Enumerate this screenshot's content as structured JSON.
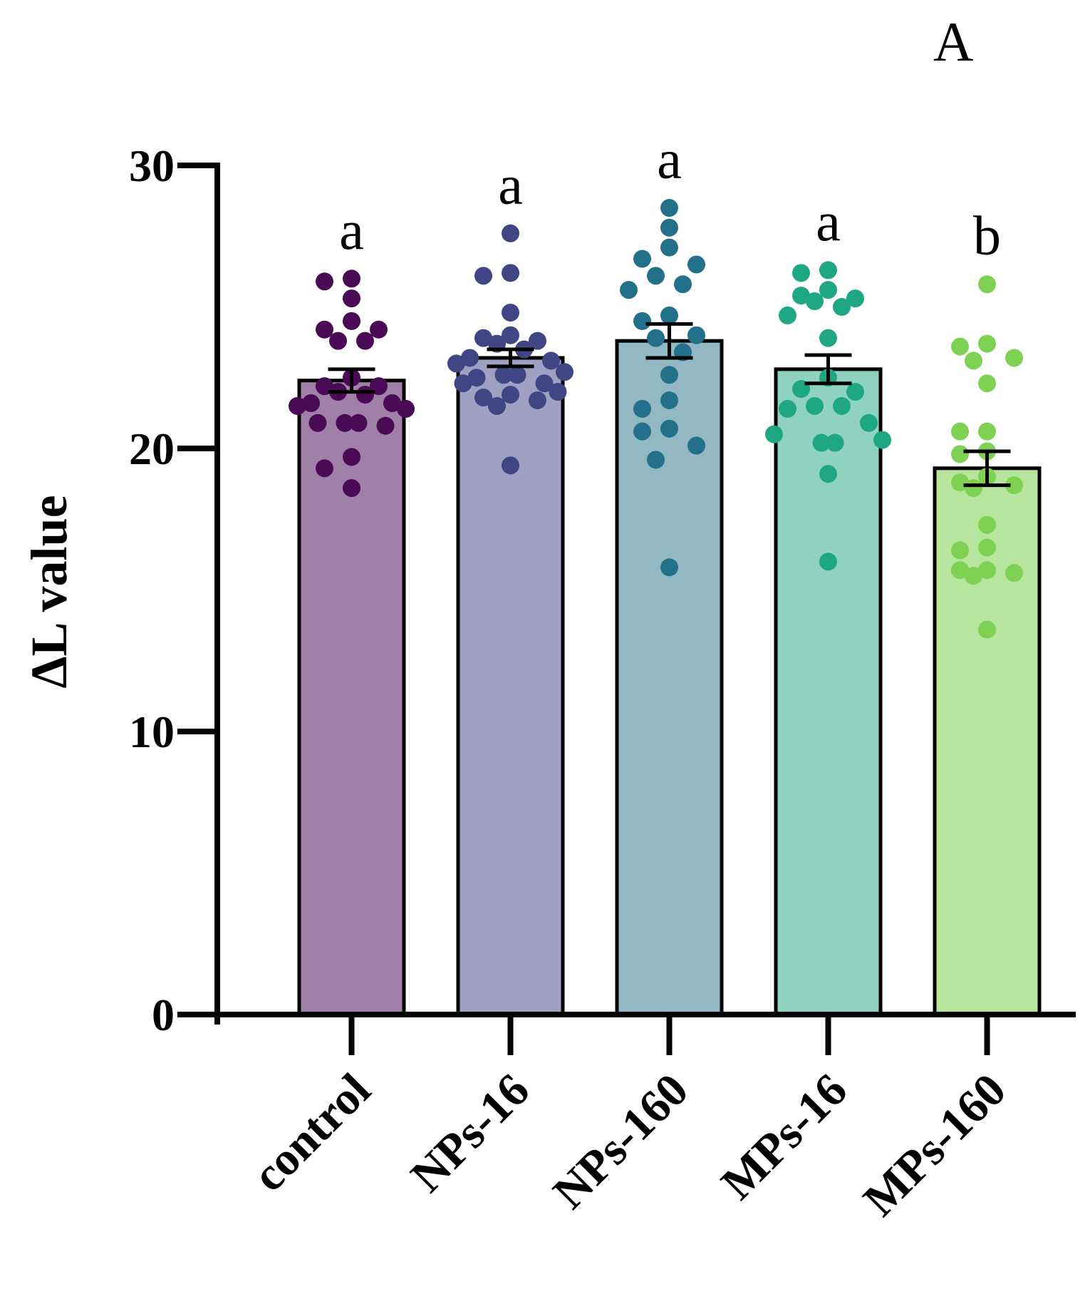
{
  "panel_label": "A",
  "chart_data": {
    "type": "bar",
    "title": "",
    "xlabel": "",
    "ylabel": "ΔL value",
    "ylim": [
      0,
      30
    ],
    "yticks": [
      0,
      10,
      20,
      30
    ],
    "ytick_labels": [
      "0",
      "10",
      "20",
      "30"
    ],
    "categories": [
      "control",
      "NPs-16",
      "NPs-160",
      "MPs-16",
      "MPs-160"
    ],
    "values": [
      22.4,
      23.2,
      23.8,
      22.8,
      19.3
    ],
    "errors": [
      0.4,
      0.3,
      0.6,
      0.5,
      0.6
    ],
    "significance": [
      "a",
      "a",
      "a",
      "a",
      "b"
    ],
    "bar_colors": [
      "#a07fa8",
      "#9fa0c2",
      "#93b8c4",
      "#90d2c0",
      "#b8e59e"
    ],
    "dot_colors": [
      "#4b0a55",
      "#404584",
      "#22708a",
      "#1fa784",
      "#7ed152"
    ],
    "points": [
      [
        26.0,
        25.9,
        25.3,
        24.5,
        24.2,
        23.8,
        24.2,
        23.8,
        22.5,
        22.2,
        22.2,
        22.0,
        21.9,
        21.6,
        21.6,
        21.4,
        21.5,
        20.9,
        20.9,
        20.9,
        20.8,
        19.7,
        19.3,
        18.6
      ],
      [
        27.6,
        26.2,
        26.1,
        24.8,
        24.0,
        23.9,
        23.8,
        23.7,
        23.5,
        23.1,
        23.0,
        23.2,
        22.7,
        22.6,
        22.6,
        22.5,
        22.3,
        22.3,
        22.0,
        21.8,
        21.7,
        21.9,
        21.5,
        19.4
      ],
      [
        28.5,
        27.8,
        27.1,
        26.7,
        26.5,
        26.1,
        25.8,
        25.6,
        24.7,
        24.5,
        24.0,
        23.9,
        23.4,
        22.6,
        21.4,
        21.7,
        20.7,
        20.6,
        20.1,
        19.6,
        15.8
      ],
      [
        26.3,
        26.2,
        25.4,
        25.3,
        25.2,
        25.6,
        25.0,
        24.7,
        23.9,
        22.5,
        22.1,
        22.0,
        21.4,
        21.5,
        21.5,
        20.9,
        20.3,
        20.2,
        20.2,
        20.5,
        19.1,
        16.0
      ],
      [
        25.8,
        23.6,
        23.7,
        23.1,
        23.2,
        22.3,
        20.6,
        20.6,
        19.9,
        19.8,
        19.0,
        18.7,
        18.8,
        18.6,
        17.3,
        16.5,
        16.4,
        15.7,
        15.6,
        15.7,
        15.5,
        13.6
      ]
    ],
    "grid": false,
    "legend": "none"
  }
}
